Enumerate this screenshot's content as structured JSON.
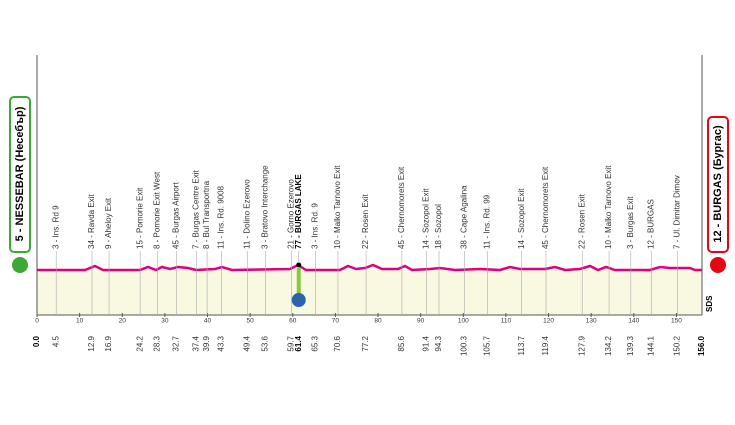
{
  "start": {
    "km": {
      "value": 0,
      "label": "0.0"
    },
    "label": "5 - NESSEBAR (Несебър)"
  },
  "finish": {
    "km": {
      "value": 156,
      "label": "156.0"
    },
    "label": "12 - BURGAS (Бургас)"
  },
  "sprint": {
    "km": 61.4,
    "label": "77 - BURGAS LAKE"
  },
  "waypoints": [
    {
      "km": 4.5,
      "label": "3 - Ins. Rd 9"
    },
    {
      "km": 12.9,
      "label": "34 - Ravda Exit"
    },
    {
      "km": 16.9,
      "label": "9 - Aheloy Exit"
    },
    {
      "km": 24.2,
      "label": "15 - Pomorie Exit"
    },
    {
      "km": 28.3,
      "label": "8 - Pomorie Exit West"
    },
    {
      "km": 32.7,
      "label": "45 - Burgas Airport"
    },
    {
      "km": 37.4,
      "label": "7 - Burgas Centre Exit"
    },
    {
      "km": 39.9,
      "label": "8 - Bul Transportna"
    },
    {
      "km": 43.3,
      "label": "11 - Ins. Rd. 9008"
    },
    {
      "km": 49.4,
      "label": "11 - Dolino Ezerovo"
    },
    {
      "km": 53.6,
      "label": "3 - Bratovo Interchange"
    },
    {
      "km": 59.7,
      "label": "21 - Gorno Ezerovo"
    },
    {
      "km": 65.3,
      "label": "3 - Ins. Rd. 9"
    },
    {
      "km": 70.6,
      "label": "10 - Malko Tarnovo Exit"
    },
    {
      "km": 77.2,
      "label": "22 - Rosen Exit"
    },
    {
      "km": 85.6,
      "label": "45 - Chernomorets Exit"
    },
    {
      "km": 91.4,
      "label": "14 - Sozopol Exit"
    },
    {
      "km": 94.3,
      "label": "18 - Sozopol"
    },
    {
      "km": 100.3,
      "label": "38 - Cape Agalina"
    },
    {
      "km": 105.7,
      "label": "11 - Ins. Rd. 99"
    },
    {
      "km": 113.7,
      "label": "14 - Sozopol Exit"
    },
    {
      "km": 119.4,
      "label": "45 - Chernomorets Exit"
    },
    {
      "km": 127.9,
      "label": "22 - Rosen Exit"
    },
    {
      "km": 134.2,
      "label": "10 - Malko Tarnovo Exit"
    },
    {
      "km": 139.3,
      "label": "3 - Burgas Exit"
    },
    {
      "km": 144.1,
      "label": "12 - BURGAS"
    },
    {
      "km": 150.2,
      "label": "7 - Ul. Dimitar Dimov"
    }
  ],
  "km_ticks": [
    0,
    10,
    20,
    30,
    40,
    50,
    60,
    70,
    80,
    90,
    100,
    110,
    120,
    130,
    140,
    150
  ],
  "logo": "SDS"
}
